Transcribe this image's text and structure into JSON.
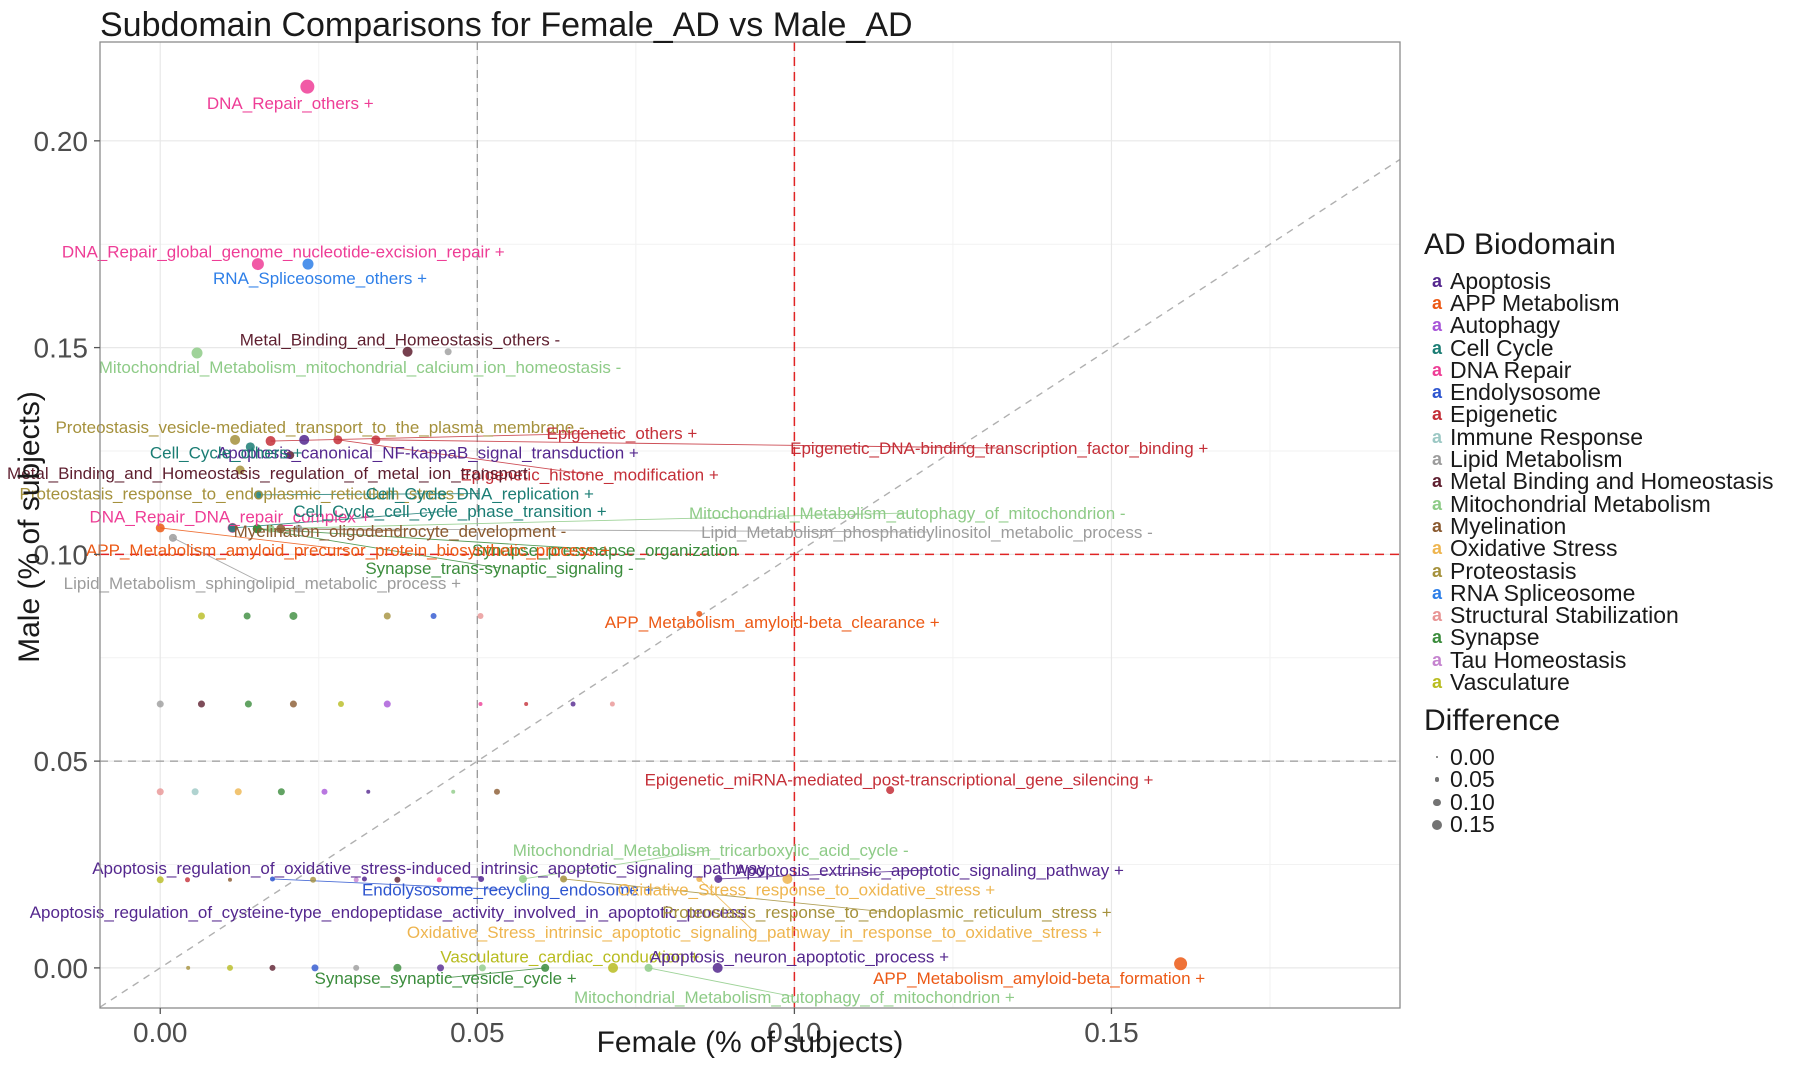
{
  "title": "Subdomain Comparisons for Female_AD vs Male_AD",
  "x_axis_title": "Female (% of subjects)",
  "y_axis_title": "Male (% of subjects)",
  "legend": {
    "biodomain_title": "AD Biodomain",
    "difference_title": "Difference",
    "difference_sizes": [
      {
        "label": "0.00",
        "r": 0.9
      },
      {
        "label": "0.05",
        "r": 2.3
      },
      {
        "label": "0.10",
        "r": 3.7
      },
      {
        "label": "0.15",
        "r": 5.2
      }
    ]
  },
  "chart_data": {
    "type": "scatter",
    "title": "Subdomain Comparisons for Female_AD vs Male_AD",
    "xlabel": "Female (% of subjects)",
    "ylabel": "Male (% of subjects)",
    "xlim": [
      -0.0095,
      0.1955
    ],
    "ylim": [
      -0.0097,
      0.2239
    ],
    "x_ticks": [
      "0.00",
      "0.05",
      "0.10",
      "0.15"
    ],
    "x_tick_values": [
      0.0,
      0.05,
      0.1,
      0.15
    ],
    "y_ticks": [
      "0.00",
      "0.05",
      "0.10",
      "0.15",
      "0.20"
    ],
    "y_tick_values": [
      0.0,
      0.05,
      0.1,
      0.15,
      0.2
    ],
    "minor_x": [
      0.025,
      0.075,
      0.125,
      0.175
    ],
    "minor_y": [
      0.025,
      0.075,
      0.125,
      0.175
    ],
    "grid": true,
    "identity_line": true,
    "ref_lines": {
      "red_vertical_x": 0.1,
      "red_horizontal_y": 0.1,
      "gray_vertical_x": 0.05,
      "gray_horizontal_y": 0.05,
      "red_color": "#e02424",
      "gray_color": "#9a9a9a"
    },
    "palette": {
      "Apoptosis": "#54278e",
      "APP Metabolism": "#ec5915",
      "Autophagy": "#a855d8",
      "Cell Cycle": "#1b7d74",
      "DNA Repair": "#ee3d96",
      "Endolysosome": "#2d55cf",
      "Epigenetic": "#c42f38",
      "Immune Response": "#9cc8c4",
      "Lipid Metabolism": "#9c9c9c",
      "Metal Binding and Homeostasis": "#5e1f2f",
      "Mitochondrial Metabolism": "#8ecb87",
      "Myelination": "#8a5a30",
      "Oxidative Stress": "#eeb54f",
      "Proteostasis": "#a5913c",
      "RNA Spliceosome": "#2e7fe8",
      "Structural Stabilization": "#e89494",
      "Synapse": "#3b8c3c",
      "Tau Homeostasis": "#c583cf",
      "Vasculature": "#b8bc20"
    },
    "biodomains": [
      "Apoptosis",
      "APP Metabolism",
      "Autophagy",
      "Cell Cycle",
      "DNA Repair",
      "Endolysosome",
      "Epigenetic",
      "Immune Response",
      "Lipid Metabolism",
      "Metal Binding and Homeostasis",
      "Mitochondrial Metabolism",
      "Myelination",
      "Oxidative Stress",
      "Proteostasis",
      "RNA Spliceosome",
      "Structural Stabilization",
      "Synapse",
      "Tau Homeostasis",
      "Vasculature"
    ],
    "labeled_points": [
      {
        "label": "DNA_Repair_others +",
        "domain": "DNA Repair",
        "x": 0.0232,
        "y": 0.2131,
        "r": 7,
        "lx": 0.0205,
        "ly": 0.2092,
        "seg": false
      },
      {
        "label": "DNA_Repair_global_genome_nucleotide-excision_repair +",
        "domain": "DNA Repair",
        "x": 0.0154,
        "y": 0.1702,
        "r": 6,
        "lx": 0.0194,
        "ly": 0.1732,
        "seg": false
      },
      {
        "label": "RNA_Spliceosome_others +",
        "domain": "RNA Spliceosome",
        "x": 0.0233,
        "y": 0.1702,
        "r": 5.5,
        "lx": 0.0252,
        "ly": 0.1668,
        "seg": false
      },
      {
        "label": "Metal_Binding_and_Homeostasis_others -",
        "domain": "Metal Binding and Homeostasis",
        "x": 0.039,
        "y": 0.149,
        "r": 5,
        "lx": 0.0378,
        "ly": 0.1519,
        "seg": false
      },
      {
        "label": "Mitochondrial_Metabolism_mitochondrial_calcium_ion_homeostasis -",
        "domain": "Mitochondrial Metabolism",
        "x": 0.0058,
        "y": 0.1487,
        "r": 5.5,
        "lx": 0.0315,
        "ly": 0.1453,
        "seg": false
      },
      {
        "label": "Proteostasis_vesicle-mediated_transport_to_the_plasma_membrane -",
        "domain": "Proteostasis",
        "x": 0.0118,
        "y": 0.1277,
        "r": 5,
        "lx": 0.0252,
        "ly": 0.1308,
        "seg": false
      },
      {
        "label": "Epigenetic_others +",
        "domain": "Epigenetic",
        "x": 0.0174,
        "y": 0.1274,
        "r": 5,
        "lx": 0.0728,
        "ly": 0.1294,
        "seg": true
      },
      {
        "label": "Apoptosis_canonical_NF-kappaB_signal_transduction +",
        "domain": "Apoptosis",
        "x": 0.0227,
        "y": 0.1277,
        "r": 5,
        "lx": 0.0422,
        "ly": 0.1246,
        "seg": false
      },
      {
        "label": "Cell_Cycle_others +",
        "domain": "Cell Cycle",
        "x": 0.0142,
        "y": 0.126,
        "r": 4.5,
        "lx": 0.0104,
        "ly": 0.1246,
        "seg": false
      },
      {
        "label": "Epigenetic_DNA-binding_transcription_factor_binding +",
        "domain": "Epigenetic",
        "x": 0.034,
        "y": 0.1277,
        "r": 4.5,
        "lx": 0.1323,
        "ly": 0.1257,
        "seg": true
      },
      {
        "label": "Epigenetic_histone_modification +",
        "domain": "Epigenetic",
        "x": 0.028,
        "y": 0.1277,
        "r": 4.5,
        "lx": 0.0677,
        "ly": 0.1193,
        "seg": true
      },
      {
        "label": "Metal_Binding_and_Homeostasis_regulation_of_metal_ion_transport",
        "domain": "Metal Binding and Homeostasis",
        "x": 0.0205,
        "y": 0.124,
        "r": 4,
        "lx": 0.0169,
        "ly": 0.1197,
        "seg": false
      },
      {
        "label": "Proteostasis_response_to_endoplasmic_reticulum_stress -",
        "domain": "Proteostasis",
        "x": 0.0126,
        "y": 0.1204,
        "r": 4.5,
        "lx": 0.0129,
        "ly": 0.1147,
        "seg": false
      },
      {
        "label": "Cell_Cycle_DNA_replication +",
        "domain": "Cell Cycle",
        "x": 0.0155,
        "y": 0.1144,
        "r": 4.5,
        "lx": 0.0504,
        "ly": 0.1147,
        "seg": true
      },
      {
        "label": "DNA_Repair_DNA_repair_complex +",
        "domain": "DNA Repair",
        "x": 0.0114,
        "y": 0.1064,
        "r": 5,
        "lx": 0.011,
        "ly": 0.1091,
        "seg": false
      },
      {
        "label": "Cell_Cycle_cell_cycle_phase_transition +",
        "domain": "Cell Cycle",
        "x": 0.0114,
        "y": 0.1064,
        "r": 4.5,
        "lx": 0.0457,
        "ly": 0.1105,
        "seg": true
      },
      {
        "label": "Mitochondrial_Metabolism_autophagy_of_mitochondrion -",
        "domain": "Mitochondrial Metabolism",
        "x": 0.0174,
        "y": 0.1062,
        "r": 4,
        "lx": 0.1178,
        "ly": 0.11,
        "seg": true
      },
      {
        "label": "Myelination_oligodendrocyte_development -",
        "domain": "Myelination",
        "x": 0.019,
        "y": 0.1062,
        "r": 4.5,
        "lx": 0.0378,
        "ly": 0.1057,
        "seg": true
      },
      {
        "label": "Lipid_Metabolism_phosphatidylinositol_metabolic_process -",
        "domain": "Lipid Metabolism",
        "x": 0.0218,
        "y": 0.1062,
        "r": 4,
        "lx": 0.1209,
        "ly": 0.1054,
        "seg": true
      },
      {
        "label": "Synapse_presynapse_organization",
        "domain": "Synapse",
        "x": 0.0153,
        "y": 0.1062,
        "r": 4.5,
        "lx": 0.0701,
        "ly": 0.1011,
        "seg": true
      },
      {
        "label": "Synapse_trans-synaptic_signaling -",
        "domain": "Synapse",
        "x": 0.0153,
        "y": 0.1062,
        "r": 4.5,
        "lx": 0.0535,
        "ly": 0.0967,
        "seg": true
      },
      {
        "label": "APP_Metabolism_amyloid_precursor_protein_biosynthetic_process +",
        "domain": "APP Metabolism",
        "x": 0.0,
        "y": 0.1064,
        "r": 4.5,
        "lx": 0.0296,
        "ly": 0.1011,
        "seg": true
      },
      {
        "label": "Lipid_Metabolism_sphingolipid_metabolic_process +",
        "domain": "Lipid Metabolism",
        "x": 0.002,
        "y": 0.104,
        "r": 4,
        "lx": 0.0161,
        "ly": 0.0931,
        "seg": true
      },
      {
        "label": "APP_Metabolism_amyloid-beta_clearance +",
        "domain": "APP Metabolism",
        "x": 0.085,
        "y": 0.0856,
        "r": 3,
        "lx": 0.0965,
        "ly": 0.0837,
        "seg": false
      },
      {
        "label": "Epigenetic_miRNA-mediated_post-transcriptional_gene_silencing +",
        "domain": "Epigenetic",
        "x": 0.1151,
        "y": 0.043,
        "r": 4,
        "lx": 0.1165,
        "ly": 0.0455,
        "seg": false
      },
      {
        "label": "Mitochondrial_Metabolism_tricarboxylic_acid_cycle -",
        "domain": "Mitochondrial Metabolism",
        "x": 0.0572,
        "y": 0.0215,
        "r": 4,
        "lx": 0.0868,
        "ly": 0.0285,
        "seg": true
      },
      {
        "label": "Apoptosis_regulation_of_oxidative_stress-induced_intrinsic_apoptotic_signaling_pathway",
        "domain": "Apoptosis",
        "x": 0.0506,
        "y": 0.0215,
        "r": 3,
        "lx": 0.0424,
        "ly": 0.0242,
        "seg": false
      },
      {
        "label": "Apoptosis_extrinsic_apoptotic_signaling_pathway +",
        "domain": "Apoptosis",
        "x": 0.088,
        "y": 0.0215,
        "r": 4,
        "lx": 0.1213,
        "ly": 0.0237,
        "seg": true
      },
      {
        "label": "Endolysosome_recycling_endosome +",
        "domain": "Endolysosome",
        "x": 0.0177,
        "y": 0.0215,
        "r": 2.5,
        "lx": 0.0548,
        "ly": 0.0189,
        "seg": true
      },
      {
        "label": "Oxidative_Stress_response_to_oxidative_stress +",
        "domain": "Oxidative Stress",
        "x": 0.0989,
        "y": 0.0215,
        "r": 5,
        "lx": 0.1019,
        "ly": 0.0189,
        "seg": false
      },
      {
        "label": "Apoptosis_regulation_of_cysteine-type_endopeptidase_activity_involved_in_apoptotic_process",
        "domain": "Apoptosis",
        "x": 0.0322,
        "y": 0.0215,
        "r": 2.5,
        "lx": 0.0359,
        "ly": 0.0135,
        "seg": false
      },
      {
        "label": "Proteostasis_response_to_endoplasmic_reticulum_stress +",
        "domain": "Proteostasis",
        "x": 0.0636,
        "y": 0.0215,
        "r": 3.5,
        "lx": 0.1146,
        "ly": 0.0135,
        "seg": true
      },
      {
        "label": "Oxidative_Stress_intrinsic_apoptotic_signaling_pathway_in_response_to_oxidative_stress +",
        "domain": "Oxidative Stress",
        "x": 0.085,
        "y": 0.0215,
        "r": 3,
        "lx": 0.0937,
        "ly": 0.0087,
        "seg": true
      },
      {
        "label": "Vasculature_cardiac_conduction +",
        "domain": "Vasculature",
        "x": 0.0714,
        "y": 0.0,
        "r": 5,
        "lx": 0.0646,
        "ly": 0.0027,
        "seg": false
      },
      {
        "label": "Apoptosis_neuron_apoptotic_process +",
        "domain": "Apoptosis",
        "x": 0.0879,
        "y": 0.0,
        "r": 5,
        "lx": 0.1008,
        "ly": 0.0027,
        "seg": false
      },
      {
        "label": "Synapse_synaptic_vesicle_cycle +",
        "domain": "Synapse",
        "x": 0.0607,
        "y": 0.0,
        "r": 4,
        "lx": 0.045,
        "ly": -0.0024,
        "seg": true
      },
      {
        "label": "Mitochondrial_Metabolism_autophagy_of_mitochondrion +",
        "domain": "Mitochondrial Metabolism",
        "x": 0.077,
        "y": 0.0,
        "r": 4,
        "lx": 0.1,
        "ly": -0.007,
        "seg": true
      },
      {
        "label": "APP_Metabolism_amyloid-beta_formation +",
        "domain": "APP Metabolism",
        "x": 0.1609,
        "y": 0.001,
        "r": 6.5,
        "lx": 0.1386,
        "ly": -0.0024,
        "seg": false
      }
    ],
    "unlabeled_points": [
      {
        "domain": "Lipid Metabolism",
        "x": 0.0454,
        "y": 0.149,
        "r": 3.5
      },
      {
        "domain": "Vasculature",
        "x": 0.0065,
        "y": 0.0851,
        "r": 3.5
      },
      {
        "domain": "Synapse",
        "x": 0.0137,
        "y": 0.0851,
        "r": 3.5
      },
      {
        "domain": "Synapse",
        "x": 0.021,
        "y": 0.0851,
        "r": 4
      },
      {
        "domain": "Proteostasis",
        "x": 0.0358,
        "y": 0.0851,
        "r": 3.5
      },
      {
        "domain": "Endolysosome",
        "x": 0.0431,
        "y": 0.0851,
        "r": 3
      },
      {
        "domain": "Structural Stabilization",
        "x": 0.0505,
        "y": 0.0851,
        "r": 3
      },
      {
        "domain": "Lipid Metabolism",
        "x": 0.0,
        "y": 0.0638,
        "r": 3.5
      },
      {
        "domain": "Metal Binding and Homeostasis",
        "x": 0.0065,
        "y": 0.0638,
        "r": 3.5
      },
      {
        "domain": "Synapse",
        "x": 0.0139,
        "y": 0.0638,
        "r": 3.5
      },
      {
        "domain": "Myelination",
        "x": 0.021,
        "y": 0.0638,
        "r": 3.5
      },
      {
        "domain": "Vasculature",
        "x": 0.0285,
        "y": 0.0638,
        "r": 3
      },
      {
        "domain": "Autophagy",
        "x": 0.0358,
        "y": 0.0638,
        "r": 3.5
      },
      {
        "domain": "DNA Repair",
        "x": 0.0505,
        "y": 0.0638,
        "r": 2
      },
      {
        "domain": "Epigenetic",
        "x": 0.0577,
        "y": 0.0638,
        "r": 2
      },
      {
        "domain": "Apoptosis",
        "x": 0.0651,
        "y": 0.0638,
        "r": 2.5
      },
      {
        "domain": "Structural Stabilization",
        "x": 0.0713,
        "y": 0.0638,
        "r": 2.5
      },
      {
        "domain": "Structural Stabilization",
        "x": 0.0,
        "y": 0.0426,
        "r": 3.5
      },
      {
        "domain": "Immune Response",
        "x": 0.0055,
        "y": 0.0426,
        "r": 3.5
      },
      {
        "domain": "Oxidative Stress",
        "x": 0.0123,
        "y": 0.0426,
        "r": 3.5
      },
      {
        "domain": "Synapse",
        "x": 0.0191,
        "y": 0.0426,
        "r": 3.5
      },
      {
        "domain": "Autophagy",
        "x": 0.0259,
        "y": 0.0426,
        "r": 3
      },
      {
        "domain": "Apoptosis",
        "x": 0.0328,
        "y": 0.0426,
        "r": 2
      },
      {
        "domain": "Mitochondrial Metabolism",
        "x": 0.0462,
        "y": 0.0426,
        "r": 2
      },
      {
        "domain": "Myelination",
        "x": 0.0531,
        "y": 0.0426,
        "r": 3
      },
      {
        "domain": "Vasculature",
        "x": 0.0,
        "y": 0.0213,
        "r": 3.5
      },
      {
        "domain": "Epigenetic",
        "x": 0.0043,
        "y": 0.0213,
        "r": 2.5
      },
      {
        "domain": "Myelination",
        "x": 0.011,
        "y": 0.0213,
        "r": 2
      },
      {
        "domain": "Proteostasis",
        "x": 0.0241,
        "y": 0.0213,
        "r": 3
      },
      {
        "domain": "Tau Homeostasis",
        "x": 0.0309,
        "y": 0.0213,
        "r": 2.5
      },
      {
        "domain": "Metal Binding and Homeostasis",
        "x": 0.0374,
        "y": 0.0213,
        "r": 3
      },
      {
        "domain": "DNA Repair",
        "x": 0.044,
        "y": 0.0213,
        "r": 2.5
      },
      {
        "domain": "Proteostasis",
        "x": 0.0044,
        "y": 0.0,
        "r": 2
      },
      {
        "domain": "Vasculature",
        "x": 0.011,
        "y": 0.0,
        "r": 3
      },
      {
        "domain": "Metal Binding and Homeostasis",
        "x": 0.0177,
        "y": 0.0,
        "r": 3
      },
      {
        "domain": "Endolysosome",
        "x": 0.0244,
        "y": 0.0,
        "r": 3.5
      },
      {
        "domain": "Lipid Metabolism",
        "x": 0.0309,
        "y": 0.0,
        "r": 3
      },
      {
        "domain": "Synapse",
        "x": 0.0374,
        "y": 0.0,
        "r": 4
      },
      {
        "domain": "Apoptosis",
        "x": 0.0442,
        "y": 0.0,
        "r": 3.5
      },
      {
        "domain": "Mitochondrial Metabolism",
        "x": 0.0508,
        "y": 0.0,
        "r": 3.5
      }
    ]
  }
}
